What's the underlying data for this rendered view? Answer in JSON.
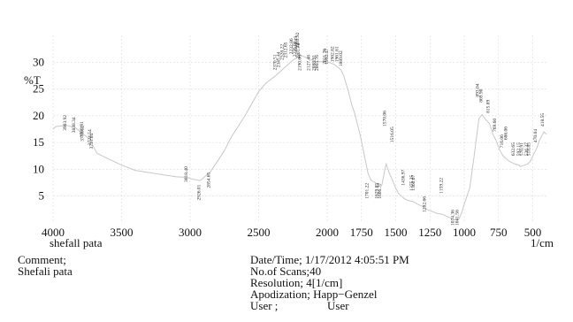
{
  "chart_data": {
    "type": "line",
    "ylabel": "%T",
    "xlabel": "1/cm",
    "sample_name": "shefall pata",
    "xlim": [
      4000,
      400
    ],
    "ylim": [
      0,
      35
    ],
    "xticks": [
      4000,
      3500,
      3000,
      2500,
      2000,
      1750,
      1500,
      1250,
      1000,
      750,
      500
    ],
    "yticks": [
      5,
      10,
      15,
      20,
      25,
      30
    ],
    "grid": true,
    "series": [
      {
        "x": [
          4000,
          3980,
          3903,
          3838,
          3800,
          3780,
          3776,
          3724,
          3711,
          3680,
          3600,
          3500,
          3400,
          3200,
          3100,
          3018,
          2990,
          2926,
          2854,
          2800,
          2750,
          2700,
          2600,
          2500,
          2450,
          2370,
          2345,
          2320,
          2292,
          2250,
          2225,
          2218,
          2205,
          2200,
          2190,
          2150,
          2127,
          2100,
          2088,
          2065,
          2011,
          1992,
          1950,
          1900,
          1880,
          1850,
          1820,
          1800,
          1760,
          1701,
          1680,
          1629,
          1605,
          1600,
          1579,
          1570,
          1550,
          1516,
          1500,
          1480,
          1436,
          1410,
          1375,
          1360,
          1340,
          1300,
          1282,
          1240,
          1200,
          1159,
          1100,
          1074,
          1041,
          1020,
          1000,
          960,
          930,
          893,
          869,
          850,
          815,
          790,
          769,
          740,
          716,
          686,
          670,
          632,
          600,
          592,
          570,
          536,
          518,
          500,
          470,
          450,
          418,
          400
        ],
        "y": [
          17.5,
          18.0,
          18.2,
          17.8,
          17.0,
          16.6,
          16.5,
          15.5,
          14.5,
          13.0,
          12.0,
          10.8,
          9.8,
          9.0,
          8.6,
          8.5,
          8.2,
          7.9,
          9.5,
          11.5,
          13.5,
          16.0,
          20.0,
          24.5,
          26.0,
          27.6,
          28.2,
          28.8,
          29.4,
          30.4,
          30.8,
          31.2,
          31.5,
          31.5,
          31.3,
          30.8,
          30.6,
          30.3,
          30.2,
          30.1,
          30.1,
          30.0,
          29.6,
          28.6,
          27.5,
          25.0,
          22.0,
          20.5,
          16.5,
          9.2,
          8.0,
          7.2,
          6.9,
          7.2,
          10.0,
          11.0,
          9.5,
          7.5,
          6.5,
          5.5,
          4.5,
          4.2,
          4.0,
          3.8,
          3.5,
          3.0,
          2.6,
          2.2,
          1.8,
          1.6,
          0.9,
          0.6,
          0.6,
          1.8,
          3.5,
          6.5,
          12.0,
          19.5,
          20.2,
          19.5,
          18.5,
          16.5,
          15.5,
          13.5,
          12.5,
          11.8,
          11.5,
          11.0,
          10.8,
          10.5,
          10.7,
          11.0,
          11.5,
          12.5,
          14.0,
          15.5,
          17.0,
          16.5
        ]
      }
    ],
    "peak_labels": [
      {
        "x": 3903,
        "y": 17.2,
        "text": "3903.92"
      },
      {
        "x": 3838,
        "y": 16.8,
        "text": "3838.34"
      },
      {
        "x": 3780,
        "y": 16.0,
        "text": "3780.91"
      },
      {
        "x": 3776,
        "y": 15.2,
        "text": "3776.12"
      },
      {
        "x": 3724,
        "y": 14.5,
        "text": "3724.54"
      },
      {
        "x": 3711,
        "y": 13.8,
        "text": "3711.04"
      },
      {
        "x": 3018,
        "y": 7.6,
        "text": "3018.40"
      },
      {
        "x": 2926,
        "y": 4.2,
        "text": "2926.01"
      },
      {
        "x": 2854,
        "y": 6.5,
        "text": "2854.65"
      },
      {
        "x": 2370,
        "y": 28.5,
        "text": "2370.51"
      },
      {
        "x": 2345,
        "y": 29.0,
        "text": "2345.44"
      },
      {
        "x": 2320,
        "y": 30.4,
        "text": "2328.22"
      },
      {
        "x": 2292,
        "y": 30.8,
        "text": "2312.65"
      },
      {
        "x": 2250,
        "y": 31.5,
        "text": "2232.86"
      },
      {
        "x": 2225,
        "y": 31.0,
        "text": "2225.50"
      },
      {
        "x": 2218,
        "y": 31.9,
        "text": "2218.49"
      },
      {
        "x": 2205,
        "y": 32.6,
        "text": "2203.92"
      },
      {
        "x": 2200,
        "y": 30.6,
        "text": "2201.78"
      },
      {
        "x": 2190,
        "y": 28.4,
        "text": "2190.06"
      },
      {
        "x": 2127,
        "y": 28.4,
        "text": "2127.48"
      },
      {
        "x": 2088,
        "y": 28.4,
        "text": "2088.91"
      },
      {
        "x": 2065,
        "y": 28.4,
        "text": "2065.76"
      },
      {
        "x": 2011,
        "y": 29.6,
        "text": "2011.76"
      },
      {
        "x": 1992,
        "y": 29.6,
        "text": "1992.47"
      },
      {
        "x": 1950,
        "y": 30.0,
        "text": "1982.82"
      },
      {
        "x": 1920,
        "y": 30.0,
        "text": "1961.61"
      },
      {
        "x": 1890,
        "y": 29.2,
        "text": "1889.02"
      },
      {
        "x": 1701,
        "y": 4.5,
        "text": "1701.22"
      },
      {
        "x": 1629,
        "y": 4.5,
        "text": "1629.85"
      },
      {
        "x": 1605,
        "y": 4.5,
        "text": "1606.77"
      },
      {
        "x": 1570,
        "y": 18.0,
        "text": "1570.06"
      },
      {
        "x": 1516,
        "y": 15.0,
        "text": "1516.05"
      },
      {
        "x": 1436,
        "y": 7.0,
        "text": "1436.97"
      },
      {
        "x": 1375,
        "y": 6.0,
        "text": "1375.25"
      },
      {
        "x": 1360,
        "y": 6.0,
        "text": "1360.07"
      },
      {
        "x": 1282,
        "y": 2.0,
        "text": "1282.66"
      },
      {
        "x": 1159,
        "y": 5.5,
        "text": "1159.22"
      },
      {
        "x": 1074,
        "y": -0.5,
        "text": "1074.36"
      },
      {
        "x": 1041,
        "y": -0.5,
        "text": "1041.56"
      },
      {
        "x": 893,
        "y": 23.5,
        "text": "893.04"
      },
      {
        "x": 869,
        "y": 22.5,
        "text": "869.90"
      },
      {
        "x": 815,
        "y": 20.5,
        "text": "815.89"
      },
      {
        "x": 769,
        "y": 17.0,
        "text": "769.60"
      },
      {
        "x": 716,
        "y": 14.0,
        "text": "716.06"
      },
      {
        "x": 686,
        "y": 15.5,
        "text": "686.06"
      },
      {
        "x": 632,
        "y": 12.5,
        "text": "632.65"
      },
      {
        "x": 592,
        "y": 12.5,
        "text": "592.15"
      },
      {
        "x": 570,
        "y": 12.5,
        "text": "570.91"
      },
      {
        "x": 536,
        "y": 12.5,
        "text": "536.37"
      },
      {
        "x": 518,
        "y": 12.5,
        "text": "518.85"
      },
      {
        "x": 470,
        "y": 15.0,
        "text": "470.04"
      },
      {
        "x": 418,
        "y": 18.0,
        "text": "418.55"
      }
    ]
  },
  "info": {
    "comment_label": "Comment;",
    "comment_value": "Shefali pata",
    "datetime": "Date/Time; 1/17/2012 4:05:51 PM",
    "scans": "No.of Scans;40",
    "resolution": "Resolution; 4[1/cm]",
    "apodization": "Apodization; Happ−Genzel",
    "user_label": "User ;",
    "user_value": "User"
  },
  "colors": {
    "line": "#c8c8c8",
    "grid": "#dcdcdc",
    "text": "#111111"
  }
}
